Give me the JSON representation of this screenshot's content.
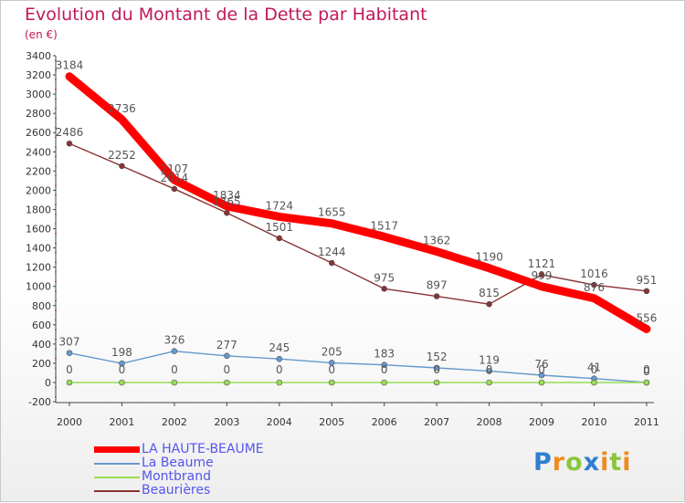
{
  "header": {
    "title": "Evolution du Montant de la Dette par Habitant",
    "subtitle": "(en €)"
  },
  "logo": {
    "text": "Proxiti"
  },
  "chart_data": {
    "type": "line",
    "title": "Evolution du Montant de la Dette par Habitant",
    "ylabel": "(en €)",
    "xlabel": "",
    "x": [
      "2000",
      "2001",
      "2002",
      "2003",
      "2004",
      "2005",
      "2006",
      "2007",
      "2008",
      "2009",
      "2010",
      "2011"
    ],
    "ylim": [
      -200,
      3400
    ],
    "yticks": [
      -200,
      0,
      200,
      400,
      600,
      800,
      1000,
      1200,
      1400,
      1600,
      1800,
      2000,
      2200,
      2400,
      2600,
      2800,
      3000,
      3200,
      3400
    ],
    "grid": false,
    "legend_position": "bottom-left",
    "series": [
      {
        "name": "LA HAUTE-BEAUME",
        "color": "#ff0000",
        "values": [
          3184,
          2736,
          2107,
          1834,
          1724,
          1655,
          1517,
          1362,
          1190,
          999,
          876,
          556
        ],
        "labels": [
          "3184",
          "2736",
          "2107",
          "1834",
          "1724",
          "1655",
          "1517",
          "1362",
          "1190",
          "999",
          "876",
          "556"
        ],
        "markers": false
      },
      {
        "name": "La Beaume",
        "color": "#6699cc",
        "values": [
          307,
          198,
          326,
          277,
          245,
          205,
          183,
          152,
          119,
          76,
          41,
          0
        ],
        "labels": [
          "307",
          "198",
          "326",
          "277",
          "245",
          "205",
          "183",
          "152",
          "119",
          "76",
          "41",
          "0"
        ],
        "markers": true
      },
      {
        "name": "Montbrand",
        "color": "#99dd55",
        "values": [
          0,
          0,
          0,
          0,
          0,
          0,
          0,
          0,
          0,
          0,
          0,
          0
        ],
        "labels": [
          "0",
          "0",
          "0",
          "0",
          "0",
          "0",
          "0",
          "0",
          "0",
          "0",
          "0",
          "0"
        ],
        "markers": true
      },
      {
        "name": "Beaurières",
        "color": "#883333",
        "values": [
          2486,
          2252,
          2014,
          1765,
          1501,
          1244,
          975,
          897,
          815,
          1121,
          1016,
          951
        ],
        "labels": [
          "2486",
          "2252",
          "2014",
          "1765",
          "1501",
          "1244",
          "975",
          "897",
          "815",
          "1121",
          "1016",
          "951"
        ],
        "markers": true
      }
    ]
  }
}
